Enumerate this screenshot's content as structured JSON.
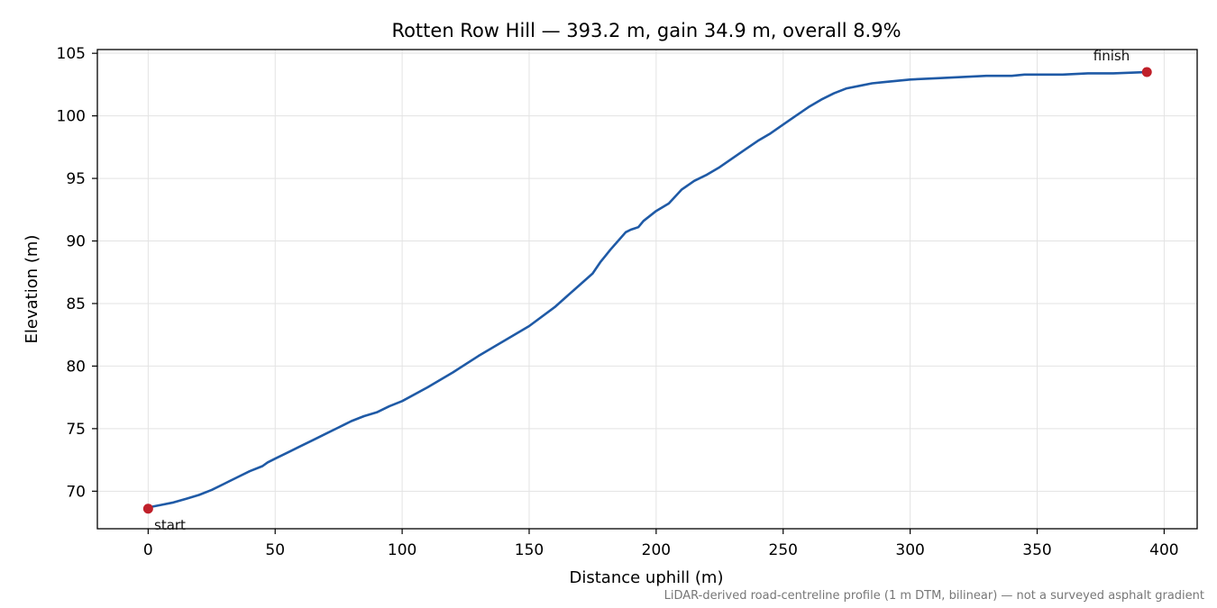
{
  "chart_data": {
    "type": "line",
    "title": "Rotten Row Hill — 393.2 m, gain 34.9 m, overall 8.9%",
    "xlabel": "Distance uphill (m)",
    "ylabel": "Elevation (m)",
    "xlim": [
      -20,
      413
    ],
    "ylim": [
      67,
      105.3
    ],
    "xticks": [
      0,
      50,
      100,
      150,
      200,
      250,
      300,
      350,
      400
    ],
    "yticks": [
      70,
      75,
      80,
      85,
      90,
      95,
      100,
      105
    ],
    "grid": true,
    "line_color": "#1f5aa6",
    "marker_color": "#c0202a",
    "series": [
      {
        "x": [
          0,
          5,
          10,
          15,
          20,
          25,
          30,
          35,
          40,
          45,
          47,
          50,
          55,
          60,
          65,
          70,
          75,
          80,
          85,
          90,
          95,
          100,
          110,
          120,
          130,
          140,
          150,
          160,
          165,
          170,
          175,
          178,
          180,
          182,
          185,
          188,
          190,
          193,
          195,
          200,
          205,
          210,
          215,
          220,
          225,
          230,
          235,
          240,
          245,
          250,
          255,
          260,
          265,
          270,
          275,
          280,
          285,
          290,
          295,
          300,
          310,
          320,
          330,
          340,
          345,
          350,
          360,
          370,
          380,
          393.2
        ],
        "y": [
          68.7,
          68.9,
          69.1,
          69.4,
          69.7,
          70.1,
          70.6,
          71.1,
          71.6,
          72.0,
          72.3,
          72.6,
          73.1,
          73.6,
          74.1,
          74.6,
          75.1,
          75.6,
          76.0,
          76.3,
          76.8,
          77.2,
          78.3,
          79.5,
          80.8,
          82.0,
          83.2,
          84.7,
          85.6,
          86.5,
          87.4,
          88.3,
          88.8,
          89.3,
          90.0,
          90.7,
          90.9,
          91.1,
          91.6,
          92.4,
          93.0,
          94.1,
          94.8,
          95.3,
          95.9,
          96.6,
          97.3,
          98.0,
          98.6,
          99.3,
          100.0,
          100.7,
          101.3,
          101.8,
          102.2,
          102.4,
          102.6,
          102.7,
          102.8,
          102.9,
          103.0,
          103.1,
          103.2,
          103.2,
          103.3,
          103.3,
          103.3,
          103.4,
          103.4,
          103.5
        ]
      }
    ],
    "annotations": [
      {
        "text": "start",
        "x": 0,
        "y": 68.6
      },
      {
        "text": "finish",
        "x": 393.2,
        "y": 103.5
      }
    ],
    "footnote": "LiDAR-derived road-centreline profile (1 m DTM, bilinear) — not a surveyed asphalt gradient"
  }
}
